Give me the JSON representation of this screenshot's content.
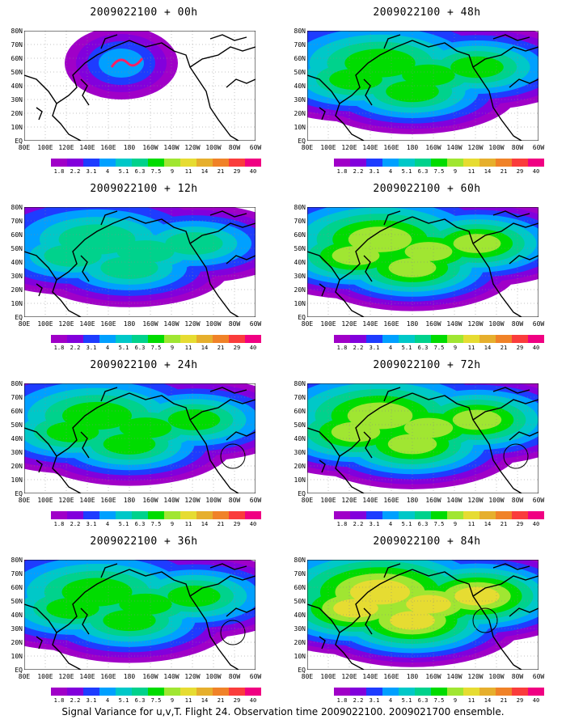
{
  "panels": [
    {
      "title": "2009022100 + 00h"
    },
    {
      "title": "2009022100 + 48h"
    },
    {
      "title": "2009022100 + 12h"
    },
    {
      "title": "2009022100 + 60h"
    },
    {
      "title": "2009022100 + 24h"
    },
    {
      "title": "2009022100 + 72h"
    },
    {
      "title": "2009022100 + 36h"
    },
    {
      "title": "2009022100 + 84h"
    }
  ],
  "latitude_labels": [
    "80N",
    "70N",
    "60N",
    "50N",
    "40N",
    "30N",
    "20N",
    "10N",
    "EQ"
  ],
  "longitude_labels": [
    "80E",
    "100E",
    "120E",
    "140E",
    "160E",
    "180",
    "160W",
    "140W",
    "120W",
    "100W",
    "80W",
    "60W"
  ],
  "colorbar": {
    "levels": [
      "1.8",
      "2.2",
      "3.1",
      "4",
      "5.1",
      "6.3",
      "7.5",
      "9",
      "11",
      "14",
      "21",
      "29",
      "40"
    ],
    "colors": [
      "#a000c8",
      "#8200dc",
      "#1e3cff",
      "#00a0ff",
      "#00c8c8",
      "#00d28c",
      "#00dc00",
      "#a0e632",
      "#e6dc32",
      "#e6af2d",
      "#f08228",
      "#fa3c3c",
      "#f00082"
    ]
  },
  "caption": "Signal Variance for u,v,T. Flight 24. Observation time 2009022100. 2009021700 ensemble."
}
